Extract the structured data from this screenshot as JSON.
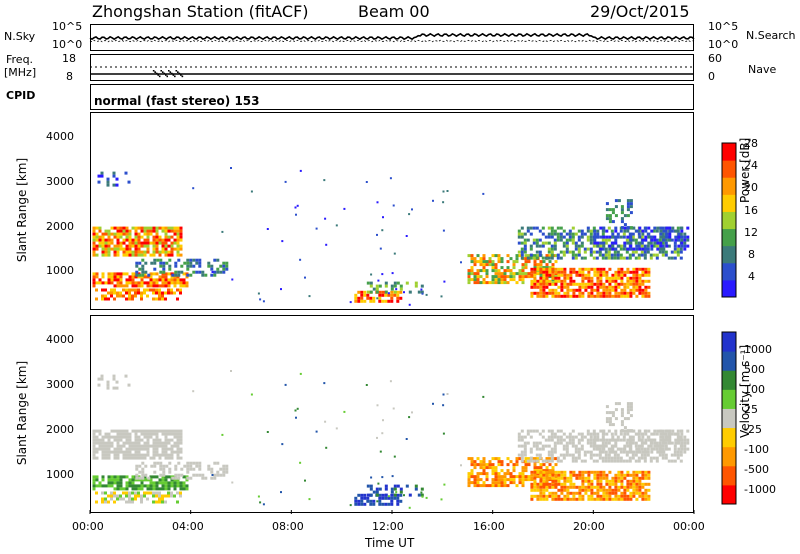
{
  "header": {
    "station": "Zhongshan Station (fitACF)",
    "beam": "Beam 00",
    "date": "29/Oct/2015"
  },
  "top_panels": {
    "nsky_label": "N.Sky",
    "nsky_ticks": [
      "10^5",
      "10^0"
    ],
    "nsearch_label": "N.Search",
    "nsearch_ticks": [
      "10^5",
      "10^0"
    ],
    "freq_label": "Freq.",
    "freq_unit": "[MHz]",
    "freq_ticks": [
      "18",
      "8"
    ],
    "nave_label": "Nave",
    "nave_ticks": [
      "60",
      "0"
    ],
    "cpid_label": "CPID",
    "cpid_value": "normal (fast stereo) 153"
  },
  "colors": {
    "power": [
      "#2a1aff",
      "#2c4fcc",
      "#3b7a7a",
      "#45a04a",
      "#a0d030",
      "#ffcc00",
      "#ff9900",
      "#ff5500",
      "#ff0000"
    ],
    "velocity": [
      "#ff0000",
      "#ff5500",
      "#ff9900",
      "#ffcc00",
      "#c8c8c0",
      "#66cc33",
      "#338833",
      "#2255aa",
      "#2233cc"
    ]
  },
  "chart_data": [
    {
      "type": "heatmap",
      "name": "power",
      "ylabel": "Slant Range [km]",
      "yticks": [
        "4000",
        "3000",
        "2000",
        "1000"
      ],
      "ylim": [
        180,
        4500
      ],
      "xlim": [
        0,
        24
      ],
      "colorbar_label": "Power [dB]",
      "colorbar_ticks": [
        "28",
        "24",
        "20",
        "16",
        "12",
        "8",
        "4"
      ],
      "colorbar_range": [
        0,
        32
      ]
    },
    {
      "type": "heatmap",
      "name": "velocity",
      "ylabel": "Slant Range [km]",
      "yticks": [
        "4000",
        "3000",
        "2000",
        "1000"
      ],
      "ylim": [
        180,
        4500
      ],
      "xlim": [
        0,
        24
      ],
      "colorbar_label": "Velocity [m s⁻¹]",
      "colorbar_ticks": [
        "1000",
        "500",
        "100",
        "25",
        "-25",
        "-100",
        "-500",
        "-1000"
      ]
    }
  ],
  "xaxis": {
    "ticks": [
      "00:00",
      "04:00",
      "08:00",
      "12:00",
      "16:00",
      "20:00",
      "00:00"
    ],
    "label": "Time UT"
  }
}
